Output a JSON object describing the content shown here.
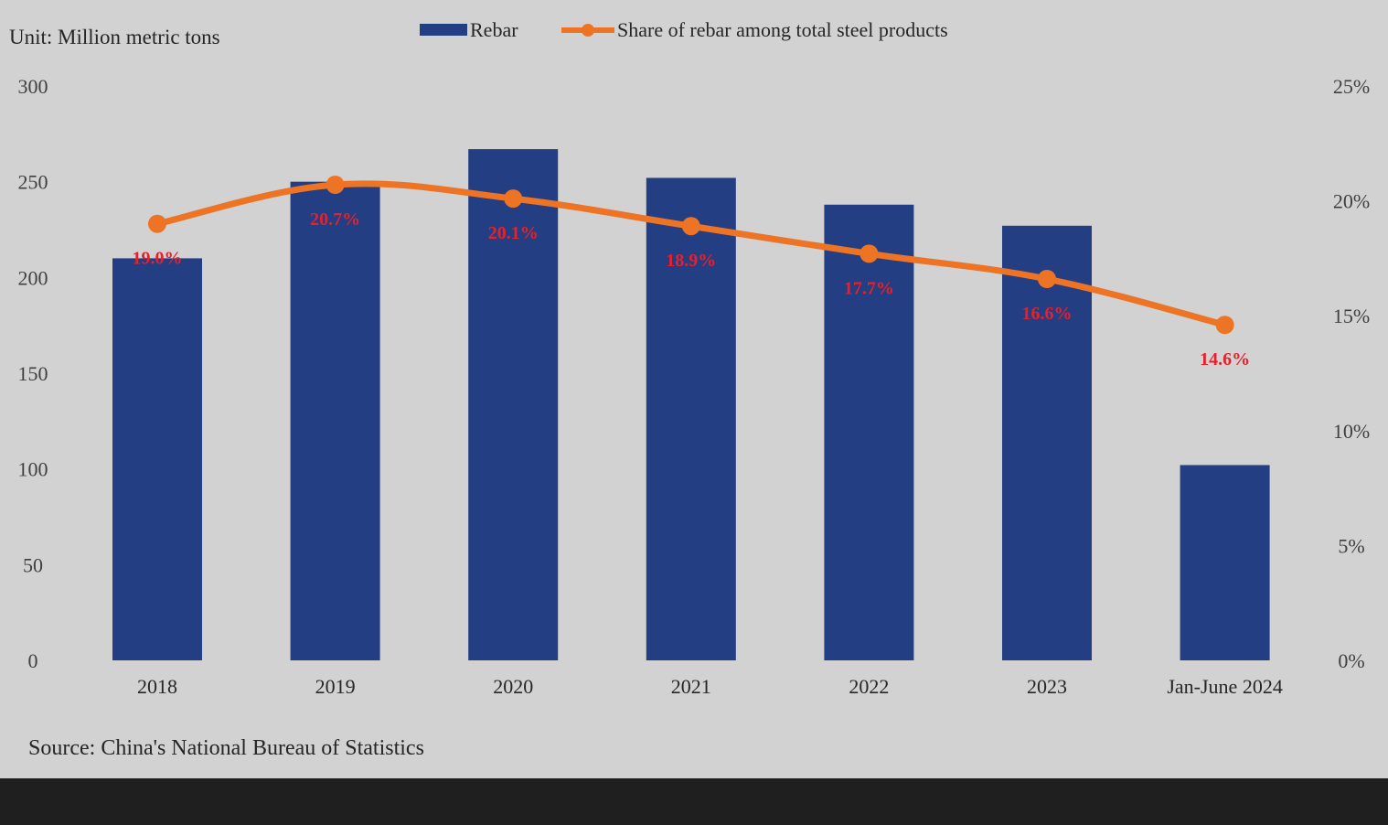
{
  "unit_label": "Unit: Million metric tons",
  "source": "Source: China's National Bureau of Statistics",
  "legend": {
    "bar_label": "Rebar",
    "line_label": "Share of rebar among total steel products"
  },
  "chart_data": {
    "type": "bar",
    "categories": [
      "2018",
      "2019",
      "2020",
      "2021",
      "2022",
      "2023",
      "Jan-June 2024"
    ],
    "series": [
      {
        "name": "Rebar",
        "type": "bar",
        "axis": "left",
        "color": "#233e82",
        "values": [
          210,
          250,
          267,
          252,
          238,
          227,
          102
        ]
      },
      {
        "name": "Share of rebar among total steel products",
        "type": "line",
        "axis": "right",
        "color": "#ed7325",
        "values": [
          19.0,
          20.7,
          20.1,
          18.9,
          17.7,
          16.6,
          14.6
        ],
        "labels": [
          "19.0%",
          "20.7%",
          "20.1%",
          "18.9%",
          "17.7%",
          "16.6%",
          "14.6%"
        ]
      }
    ],
    "y_left": {
      "min": 0,
      "max": 300,
      "ticks": [
        "0",
        "50",
        "100",
        "150",
        "200",
        "250",
        "300"
      ]
    },
    "y_right": {
      "min": 0,
      "max": 25,
      "ticks": [
        "0%",
        "5%",
        "10%",
        "15%",
        "20%",
        "25%"
      ]
    },
    "grid": false,
    "legend_position": "top"
  }
}
